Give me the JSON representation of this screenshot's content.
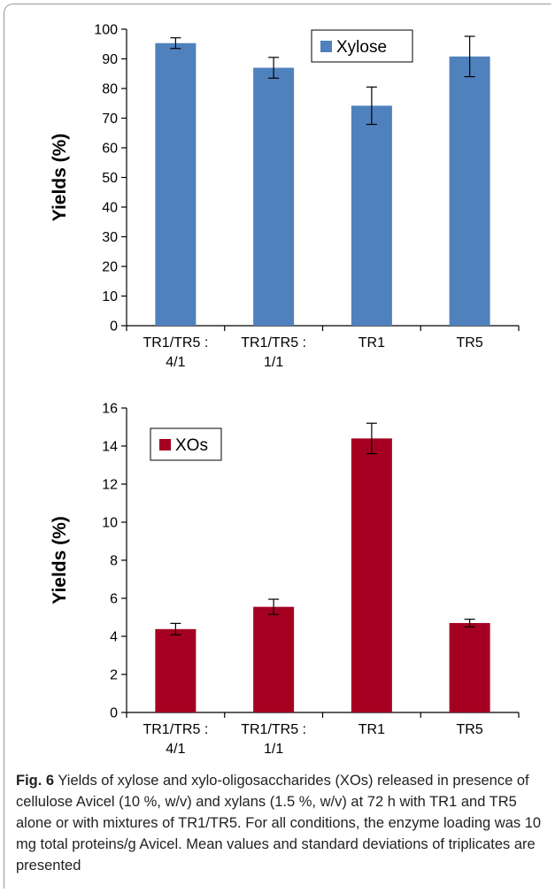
{
  "chart_data": [
    {
      "type": "bar",
      "categories": [
        [
          "TR1/TR5 :",
          "4/1"
        ],
        [
          "TR1/TR5 :",
          "1/1"
        ],
        [
          "TR1"
        ],
        [
          "TR5"
        ]
      ],
      "series": [
        {
          "name": "Xylose",
          "values": [
            95.3,
            87.0,
            74.2,
            90.8
          ],
          "errors": [
            1.8,
            3.5,
            6.3,
            6.8
          ],
          "color": "#4f81bd"
        }
      ],
      "ylabel": "Yields (%)",
      "ylim": [
        0,
        100
      ],
      "yticks": [
        0,
        10,
        20,
        30,
        40,
        50,
        60,
        70,
        80,
        90,
        100
      ],
      "legend_position": "top-right",
      "grid": false
    },
    {
      "type": "bar",
      "categories": [
        [
          "TR1/TR5 :",
          "4/1"
        ],
        [
          "TR1/TR5 :",
          "1/1"
        ],
        [
          "TR1"
        ],
        [
          "TR5"
        ]
      ],
      "series": [
        {
          "name": "XOs",
          "values": [
            4.38,
            5.55,
            14.4,
            4.7
          ],
          "errors": [
            0.3,
            0.4,
            0.8,
            0.2
          ],
          "color": "#a50021"
        }
      ],
      "ylabel": "Yields (%)",
      "ylim": [
        0,
        16
      ],
      "yticks": [
        0,
        2,
        4,
        6,
        8,
        10,
        12,
        14,
        16
      ],
      "legend_position": "top-left",
      "grid": false
    }
  ],
  "caption": {
    "label": "Fig. 6",
    "text": "Yields of xylose and xylo-oligosaccharides (XOs) released in presence of cellulose Avicel (10 %, w/v) and xylans (1.5 %, w/v) at 72 h with TR1 and TR5 alone or with mixtures of TR1/TR5. For all conditions, the enzyme loading was 10 mg total proteins/g Avicel. Mean values and standard deviations of triplicates are presented"
  }
}
